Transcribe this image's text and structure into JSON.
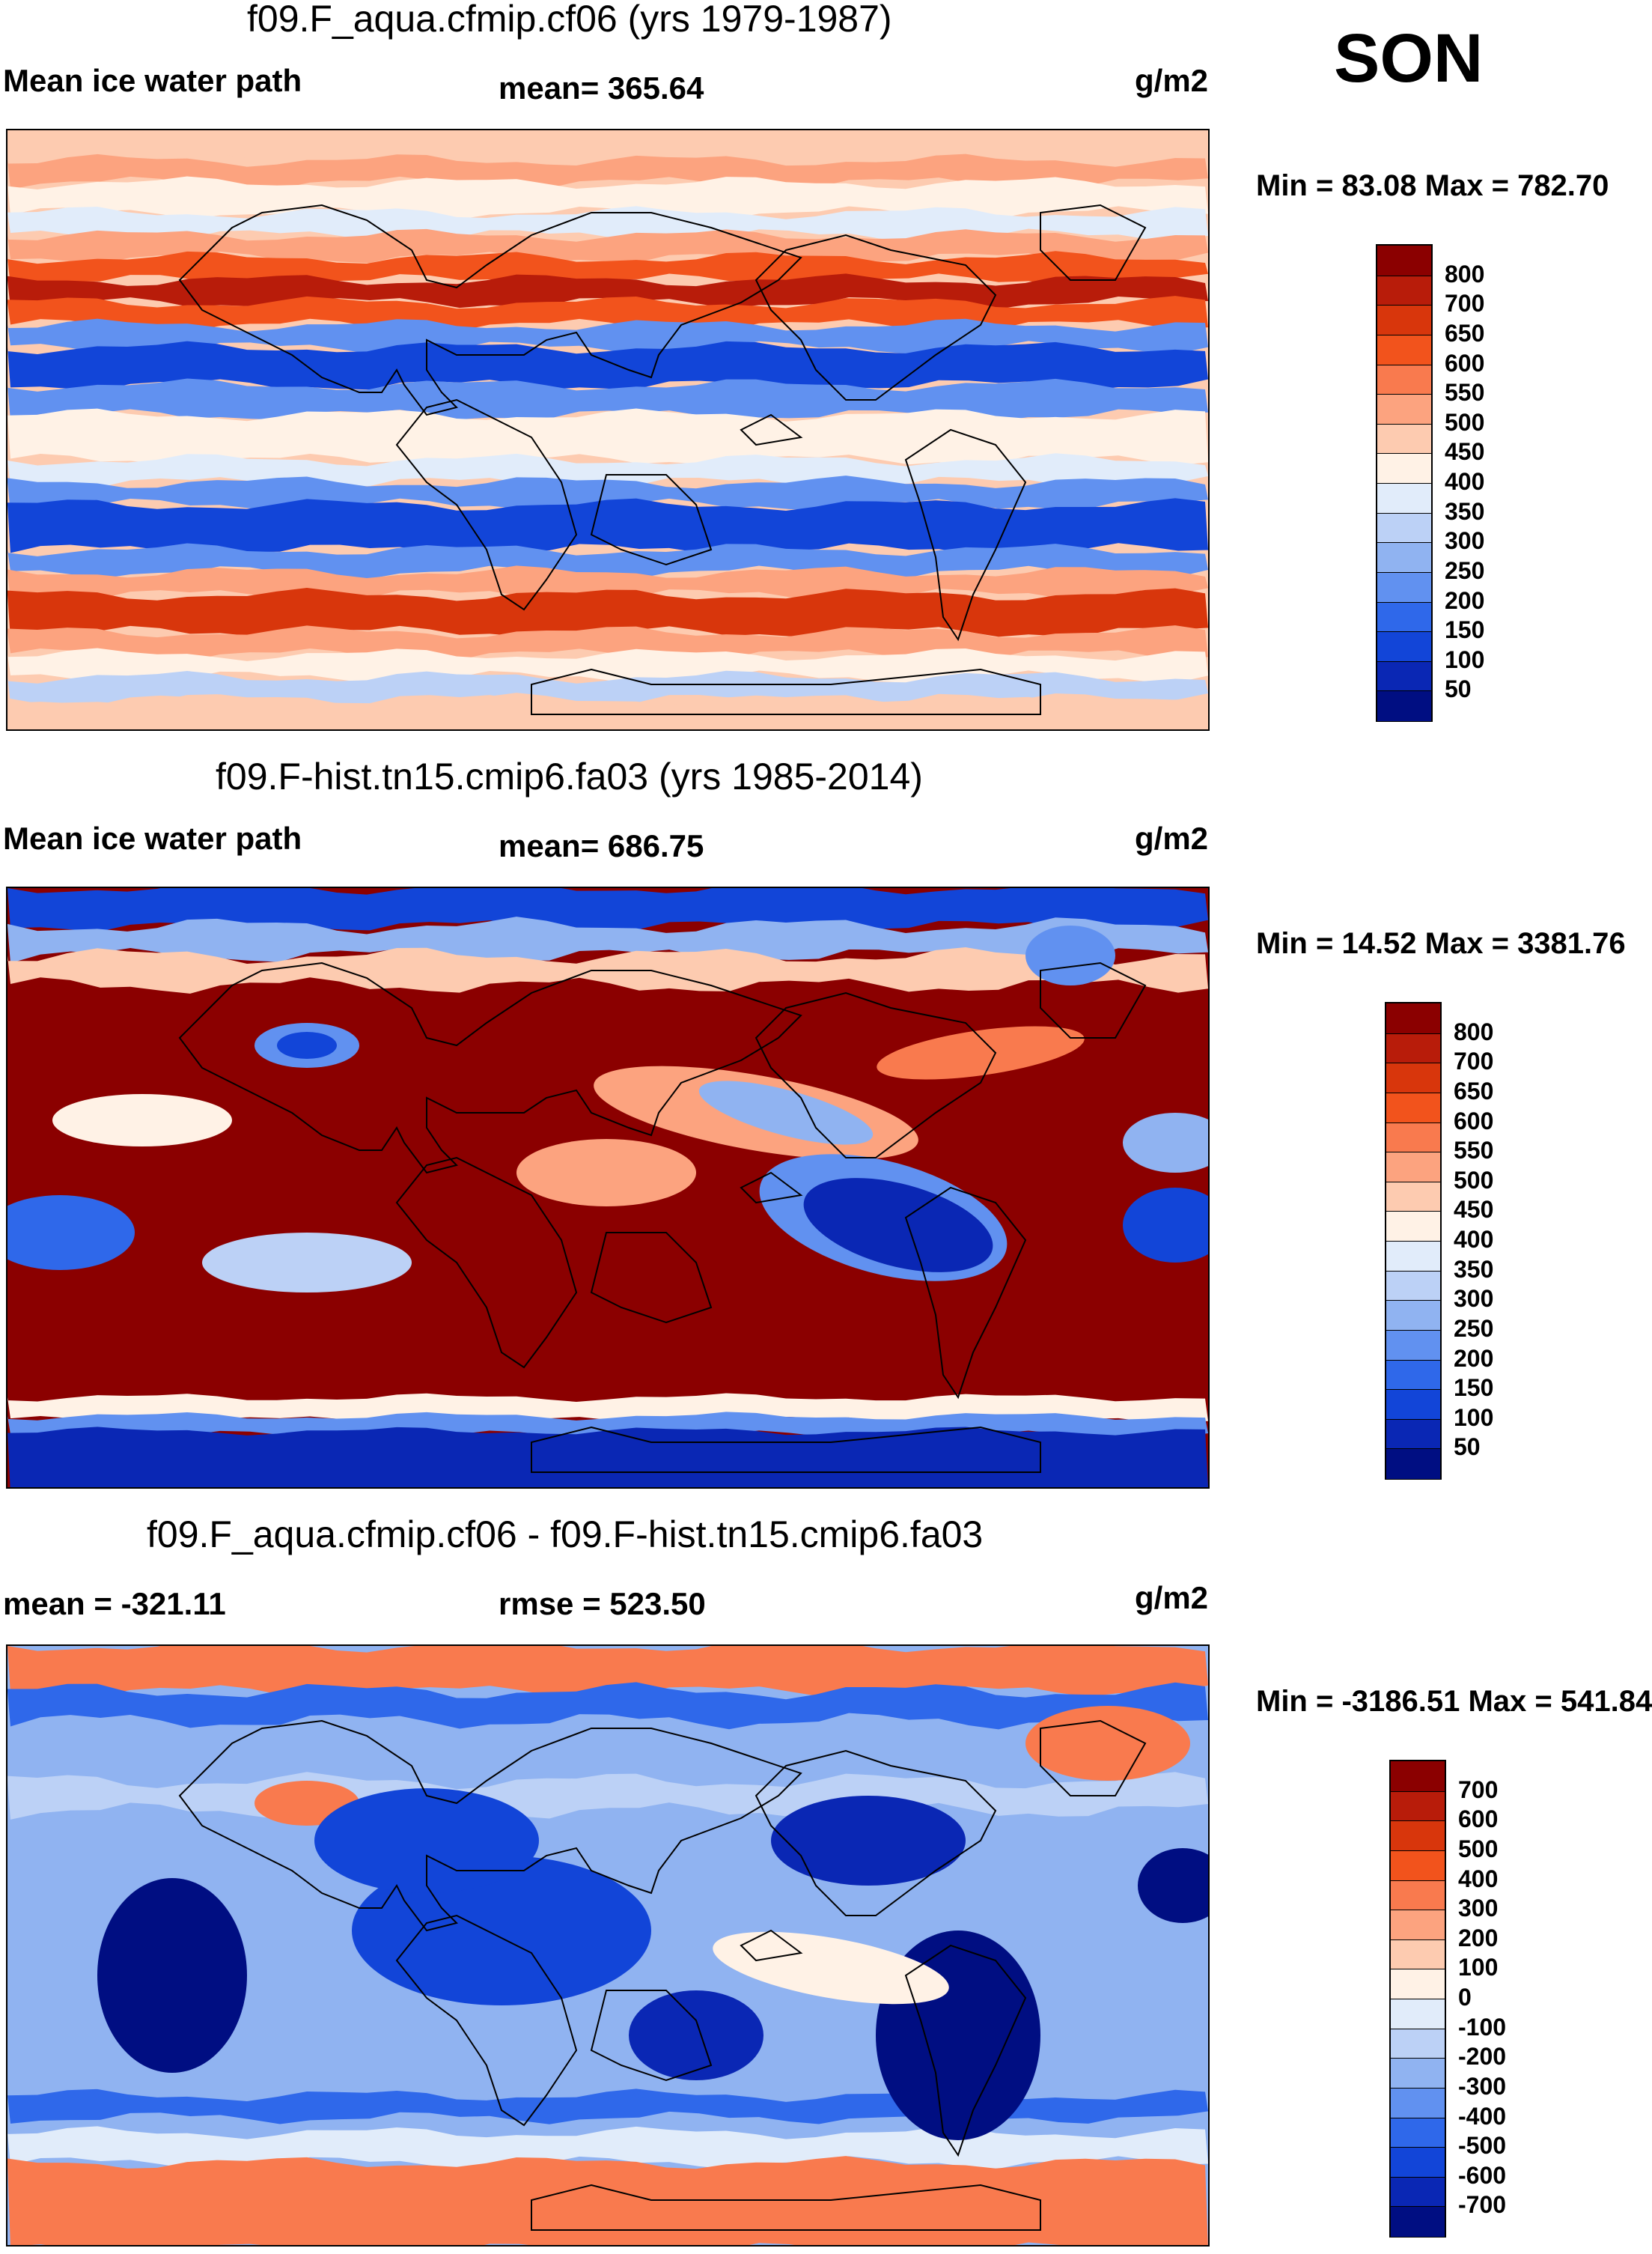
{
  "season": "SON",
  "units": "g/m2",
  "panels": [
    {
      "title": "f09.F_aqua.cfmip.cf06 (yrs 1979-1987)",
      "left_label": "Mean ice water path",
      "center_label": "mean= 365.64",
      "right_label": "g/m2",
      "minmax": "Min =  83.08 Max = 782.70",
      "pattern": "zonal",
      "colorbar": {
        "labels": [
          "800",
          "700",
          "650",
          "600",
          "550",
          "500",
          "450",
          "400",
          "350",
          "300",
          "250",
          "200",
          "150",
          "100",
          "50"
        ],
        "colors": [
          "#8b0000",
          "#b81c0a",
          "#d8360c",
          "#f2531c",
          "#f97a4e",
          "#fca37f",
          "#fdcbb0",
          "#fff2e6",
          "#e1ecfa",
          "#bcd1f6",
          "#90b3f1",
          "#6191f0",
          "#2f68ea",
          "#1245d8",
          "#0a27b4",
          "#000e82"
        ]
      }
    },
    {
      "title": "f09.F-hist.tn15.cmip6.fa03 (yrs 1985-2014)",
      "left_label": "Mean ice water path",
      "center_label": "mean= 686.75",
      "right_label": "g/m2",
      "minmax": "Min =  14.52 Max = 3381.76",
      "pattern": "hist",
      "colorbar": {
        "labels": [
          "800",
          "700",
          "650",
          "600",
          "550",
          "500",
          "450",
          "400",
          "350",
          "300",
          "250",
          "200",
          "150",
          "100",
          "50"
        ],
        "colors": [
          "#8b0000",
          "#b81c0a",
          "#d8360c",
          "#f2531c",
          "#f97a4e",
          "#fca37f",
          "#fdcbb0",
          "#fff2e6",
          "#e1ecfa",
          "#bcd1f6",
          "#90b3f1",
          "#6191f0",
          "#2f68ea",
          "#1245d8",
          "#0a27b4",
          "#000e82"
        ]
      }
    },
    {
      "title": "f09.F_aqua.cfmip.cf06 - f09.F-hist.tn15.cmip6.fa03",
      "left_label": "mean = -321.11",
      "center_label": "rmse = 523.50",
      "right_label": "g/m2",
      "minmax": "Min = -3186.51 Max = 541.84",
      "pattern": "diff",
      "colorbar": {
        "labels": [
          "700",
          "600",
          "500",
          "400",
          "300",
          "200",
          "100",
          "0",
          "-100",
          "-200",
          "-300",
          "-400",
          "-500",
          "-600",
          "-700"
        ],
        "colors": [
          "#8b0000",
          "#b81c0a",
          "#d8360c",
          "#f2531c",
          "#f97a4e",
          "#fca37f",
          "#fdcbb0",
          "#fff2e6",
          "#e1ecfa",
          "#bcd1f6",
          "#90b3f1",
          "#6191f0",
          "#2f68ea",
          "#1245d8",
          "#0a27b4",
          "#000e82"
        ]
      }
    }
  ]
}
